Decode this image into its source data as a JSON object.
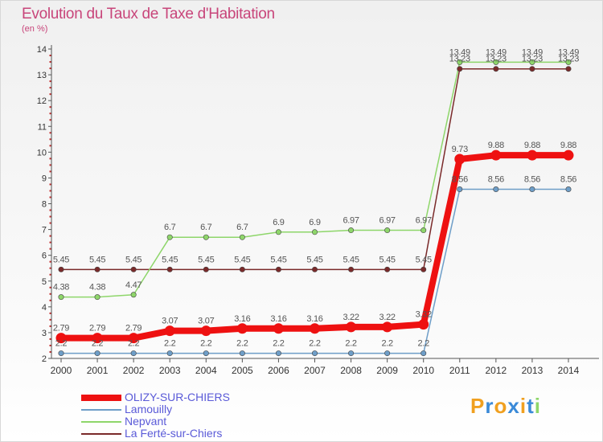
{
  "header": {
    "title": "Evolution du Taux de Taxe d'Habitation",
    "subtitle": "(en %)"
  },
  "chart_data": {
    "type": "line",
    "title": "Evolution du Taux de Taxe d'Habitation",
    "subtitle": "(en %)",
    "xlabel": "",
    "ylabel": "",
    "x": [
      "2000",
      "2001",
      "2002",
      "2003",
      "2004",
      "2005",
      "2006",
      "2007",
      "2008",
      "2009",
      "2010",
      "2011",
      "2012",
      "2013",
      "2014"
    ],
    "ylim": [
      2,
      14
    ],
    "yticks": [
      2,
      3,
      4,
      5,
      6,
      7,
      8,
      9,
      10,
      11,
      12,
      13,
      14
    ],
    "grid": false,
    "legend_position": "bottom-left",
    "series": [
      {
        "name": "La Ferté-sur-Chiers",
        "color": "#7a2a2a",
        "width": 1.5,
        "values": [
          5.45,
          5.45,
          5.45,
          5.45,
          5.45,
          5.45,
          5.45,
          5.45,
          5.45,
          5.45,
          5.45,
          13.23,
          13.23,
          13.23,
          13.23
        ],
        "labels": [
          "5.45",
          "5.45",
          "5.45",
          "5.45",
          "5.45",
          "5.45",
          "5.45",
          "5.45",
          "5.45",
          "5.45",
          "5.45",
          "13.23",
          "13.23",
          "13.23",
          "13.23"
        ]
      },
      {
        "name": "Nepvant",
        "color": "#8ed66a",
        "width": 1.5,
        "values": [
          4.38,
          4.38,
          4.47,
          6.7,
          6.7,
          6.7,
          6.9,
          6.9,
          6.97,
          6.97,
          6.97,
          13.49,
          13.49,
          13.49,
          13.49
        ],
        "labels": [
          "4.38",
          "4.38",
          "4.47",
          "6.7",
          "6.7",
          "6.7",
          "6.9",
          "6.9",
          "6.97",
          "6.97",
          "6.97",
          "13.49",
          "13.49",
          "13.49",
          "13.49"
        ]
      },
      {
        "name": "Lamouilly",
        "color": "#6e9ec8",
        "width": 1.5,
        "values": [
          2.2,
          2.2,
          2.2,
          2.2,
          2.2,
          2.2,
          2.2,
          2.2,
          2.2,
          2.2,
          2.2,
          8.56,
          8.56,
          8.56,
          8.56
        ],
        "labels": [
          "2.2",
          "2.2",
          "2.2",
          "2.2",
          "2.2",
          "2.2",
          "2.2",
          "2.2",
          "2.2",
          "2.2",
          "2.2",
          "8.56",
          "8.56",
          "8.56",
          "8.56"
        ]
      },
      {
        "name": "OLIZY-SUR-CHIERS",
        "color": "#ee1111",
        "width": 8,
        "values": [
          2.79,
          2.79,
          2.79,
          3.07,
          3.07,
          3.16,
          3.16,
          3.16,
          3.22,
          3.22,
          3.32,
          9.73,
          9.88,
          9.88,
          9.88
        ],
        "labels": [
          "2.79",
          "2.79",
          "2.79",
          "3.07",
          "3.07",
          "3.16",
          "3.16",
          "3.16",
          "3.22",
          "3.22",
          "3.32",
          "9.73",
          "9.88",
          "9.88",
          "9.88"
        ]
      }
    ]
  },
  "legend": {
    "items": [
      {
        "label": "OLIZY-SUR-CHIERS",
        "color": "#ee1111"
      },
      {
        "label": "Lamouilly",
        "color": "#6e9ec8"
      },
      {
        "label": "Nepvant",
        "color": "#8ed66a"
      },
      {
        "label": "La Ferté-sur-Chiers",
        "color": "#7a2a2a"
      }
    ]
  },
  "logo": {
    "text": "Proxiti",
    "letters": [
      {
        "ch": "P",
        "color": "#f0a020"
      },
      {
        "ch": "r",
        "color": "#3a8ad8"
      },
      {
        "ch": "o",
        "color": "#f0a020"
      },
      {
        "ch": "x",
        "color": "#3a8ad8"
      },
      {
        "ch": "i",
        "color": "#f0a020"
      },
      {
        "ch": "t",
        "color": "#3a8ad8"
      },
      {
        "ch": "i",
        "color": "#8ed66a"
      }
    ]
  }
}
